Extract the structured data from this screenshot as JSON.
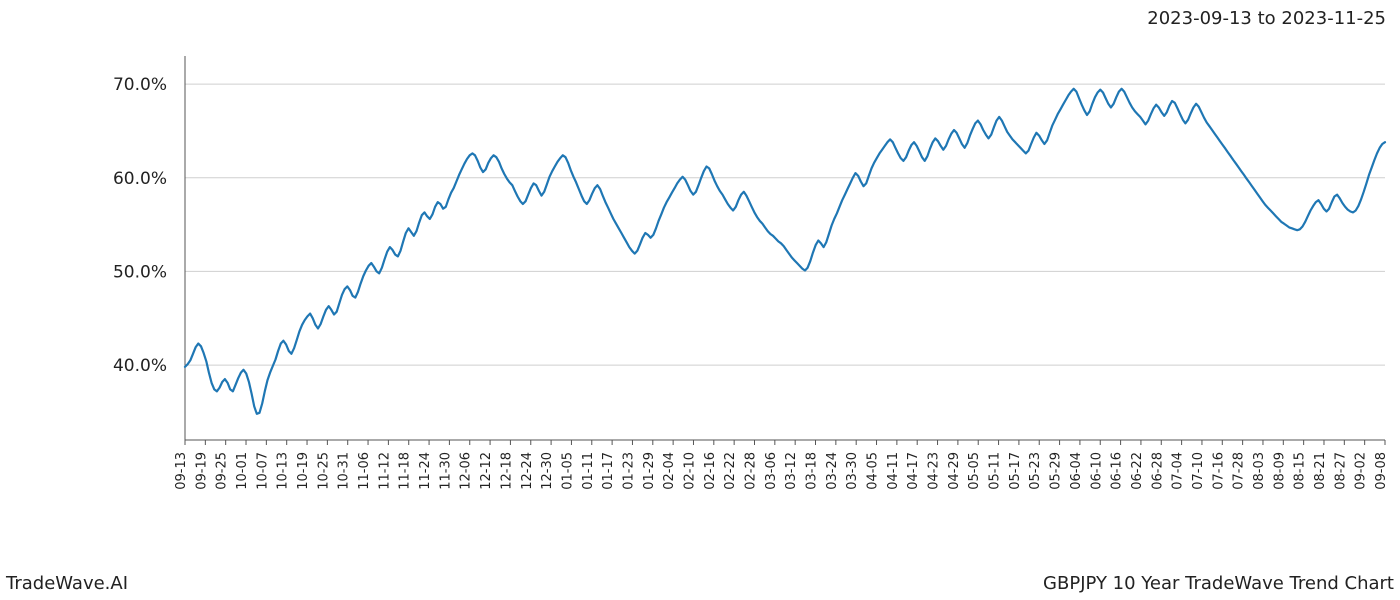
{
  "header": {
    "date_range": "2023-09-13 to 2023-11-25"
  },
  "footer": {
    "left": "TradeWave.AI",
    "right": "GBPJPY 10 Year TradeWave Trend Chart"
  },
  "chart": {
    "type": "line",
    "background_color": "#ffffff",
    "grid_color": "#cfcfcf",
    "line_color": "#1f77b4",
    "line_width": 2.2,
    "highlight_band": {
      "fill": "#daead3",
      "opacity": 0.75,
      "x_start_label": "09-13",
      "x_end_label": "11-25"
    },
    "spine_color": "#555555",
    "ylim": [
      32,
      73
    ],
    "ytick_positions": [
      40,
      50,
      60,
      70
    ],
    "ytick_labels": [
      "40.0%",
      "50.0%",
      "60.0%",
      "70.0%"
    ],
    "xtick_labels": [
      "09-13",
      "09-19",
      "09-25",
      "10-01",
      "10-07",
      "10-13",
      "10-19",
      "10-25",
      "10-31",
      "11-06",
      "11-12",
      "11-18",
      "11-24",
      "11-30",
      "12-06",
      "12-12",
      "12-18",
      "12-24",
      "12-30",
      "01-05",
      "01-11",
      "01-17",
      "01-23",
      "01-29",
      "02-04",
      "02-10",
      "02-16",
      "02-22",
      "02-28",
      "03-06",
      "03-12",
      "03-18",
      "03-24",
      "03-30",
      "04-05",
      "04-11",
      "04-17",
      "04-23",
      "04-29",
      "05-05",
      "05-11",
      "05-17",
      "05-23",
      "05-29",
      "06-04",
      "06-10",
      "06-16",
      "06-22",
      "06-28",
      "07-04",
      "07-10",
      "07-16",
      "07-28",
      "08-03",
      "08-09",
      "08-15",
      "08-21",
      "08-27",
      "09-02",
      "09-08"
    ],
    "xtick_rotation": 90,
    "label_fontsize_y": 17,
    "label_fontsize_x": 13,
    "values": [
      39.8,
      40.1,
      40.5,
      41.2,
      41.9,
      42.3,
      42.0,
      41.3,
      40.4,
      39.2,
      38.1,
      37.4,
      37.2,
      37.6,
      38.2,
      38.5,
      38.1,
      37.4,
      37.2,
      37.9,
      38.6,
      39.2,
      39.5,
      39.1,
      38.2,
      37.0,
      35.6,
      34.8,
      34.9,
      35.9,
      37.2,
      38.4,
      39.2,
      39.9,
      40.6,
      41.5,
      42.3,
      42.6,
      42.2,
      41.5,
      41.2,
      41.8,
      42.7,
      43.6,
      44.3,
      44.8,
      45.2,
      45.5,
      45.0,
      44.3,
      43.9,
      44.4,
      45.2,
      45.9,
      46.3,
      45.9,
      45.4,
      45.7,
      46.6,
      47.5,
      48.1,
      48.4,
      48.0,
      47.4,
      47.2,
      47.8,
      48.7,
      49.5,
      50.1,
      50.6,
      50.9,
      50.5,
      50.0,
      49.8,
      50.4,
      51.3,
      52.1,
      52.6,
      52.3,
      51.8,
      51.6,
      52.2,
      53.2,
      54.1,
      54.6,
      54.2,
      53.8,
      54.3,
      55.2,
      56.0,
      56.3,
      55.9,
      55.6,
      56.1,
      56.9,
      57.4,
      57.2,
      56.7,
      56.9,
      57.7,
      58.4,
      58.9,
      59.6,
      60.3,
      60.9,
      61.5,
      62.0,
      62.4,
      62.6,
      62.4,
      61.8,
      61.1,
      60.6,
      60.9,
      61.6,
      62.1,
      62.4,
      62.2,
      61.7,
      61.0,
      60.4,
      59.9,
      59.5,
      59.2,
      58.6,
      58.0,
      57.5,
      57.2,
      57.5,
      58.2,
      58.9,
      59.4,
      59.2,
      58.6,
      58.1,
      58.5,
      59.3,
      60.1,
      60.7,
      61.2,
      61.7,
      62.1,
      62.4,
      62.2,
      61.6,
      60.8,
      60.1,
      59.5,
      58.8,
      58.1,
      57.5,
      57.2,
      57.6,
      58.3,
      58.9,
      59.2,
      58.8,
      58.1,
      57.4,
      56.8,
      56.2,
      55.6,
      55.1,
      54.6,
      54.1,
      53.6,
      53.1,
      52.6,
      52.2,
      51.9,
      52.2,
      52.9,
      53.6,
      54.1,
      53.9,
      53.6,
      53.9,
      54.6,
      55.4,
      56.1,
      56.8,
      57.4,
      57.9,
      58.4,
      58.9,
      59.4,
      59.8,
      60.1,
      59.8,
      59.2,
      58.6,
      58.2,
      58.5,
      59.2,
      60.0,
      60.7,
      61.2,
      61.0,
      60.4,
      59.7,
      59.1,
      58.6,
      58.2,
      57.7,
      57.2,
      56.8,
      56.5,
      56.9,
      57.6,
      58.2,
      58.5,
      58.1,
      57.5,
      56.9,
      56.3,
      55.8,
      55.4,
      55.1,
      54.7,
      54.3,
      54.0,
      53.8,
      53.5,
      53.2,
      53.0,
      52.7,
      52.3,
      51.9,
      51.5,
      51.2,
      50.9,
      50.6,
      50.3,
      50.1,
      50.4,
      51.1,
      52.0,
      52.8,
      53.3,
      53.0,
      52.6,
      53.1,
      54.0,
      54.9,
      55.6,
      56.2,
      56.9,
      57.6,
      58.2,
      58.8,
      59.4,
      60.0,
      60.5,
      60.2,
      59.6,
      59.1,
      59.4,
      60.2,
      61.0,
      61.6,
      62.1,
      62.6,
      63.0,
      63.4,
      63.8,
      64.1,
      63.8,
      63.2,
      62.6,
      62.1,
      61.8,
      62.2,
      62.9,
      63.5,
      63.8,
      63.4,
      62.8,
      62.2,
      61.8,
      62.3,
      63.1,
      63.8,
      64.2,
      63.9,
      63.4,
      63.0,
      63.4,
      64.1,
      64.7,
      65.1,
      64.8,
      64.2,
      63.6,
      63.2,
      63.7,
      64.5,
      65.2,
      65.8,
      66.1,
      65.7,
      65.1,
      64.6,
      64.2,
      64.6,
      65.4,
      66.1,
      66.5,
      66.1,
      65.5,
      64.9,
      64.5,
      64.1,
      63.8,
      63.5,
      63.2,
      62.9,
      62.6,
      62.9,
      63.6,
      64.3,
      64.8,
      64.5,
      64.0,
      63.6,
      64.0,
      64.8,
      65.6,
      66.2,
      66.8,
      67.3,
      67.8,
      68.3,
      68.8,
      69.2,
      69.5,
      69.2,
      68.5,
      67.8,
      67.2,
      66.7,
      67.1,
      67.9,
      68.6,
      69.1,
      69.4,
      69.1,
      68.5,
      67.9,
      67.5,
      67.9,
      68.6,
      69.2,
      69.5,
      69.2,
      68.6,
      68.0,
      67.5,
      67.1,
      66.8,
      66.5,
      66.1,
      65.7,
      66.1,
      66.8,
      67.4,
      67.8,
      67.5,
      67.0,
      66.6,
      67.0,
      67.7,
      68.2,
      68.0,
      67.4,
      66.8,
      66.2,
      65.8,
      66.2,
      66.9,
      67.5,
      67.9,
      67.6,
      67.0,
      66.4,
      65.9,
      65.5,
      65.1,
      64.7,
      64.3,
      63.9,
      63.5,
      63.1,
      62.7,
      62.3,
      61.9,
      61.5,
      61.1,
      60.7,
      60.3,
      59.9,
      59.5,
      59.1,
      58.7,
      58.3,
      57.9,
      57.5,
      57.1,
      56.8,
      56.5,
      56.2,
      55.9,
      55.6,
      55.3,
      55.1,
      54.9,
      54.7,
      54.6,
      54.5,
      54.4,
      54.5,
      54.8,
      55.3,
      55.9,
      56.5,
      57.0,
      57.4,
      57.6,
      57.2,
      56.7,
      56.4,
      56.7,
      57.4,
      58.0,
      58.2,
      57.8,
      57.3,
      56.9,
      56.6,
      56.4,
      56.3,
      56.5,
      57.0,
      57.7,
      58.5,
      59.4,
      60.3,
      61.1,
      61.9,
      62.6,
      63.2,
      63.6,
      63.8
    ]
  }
}
